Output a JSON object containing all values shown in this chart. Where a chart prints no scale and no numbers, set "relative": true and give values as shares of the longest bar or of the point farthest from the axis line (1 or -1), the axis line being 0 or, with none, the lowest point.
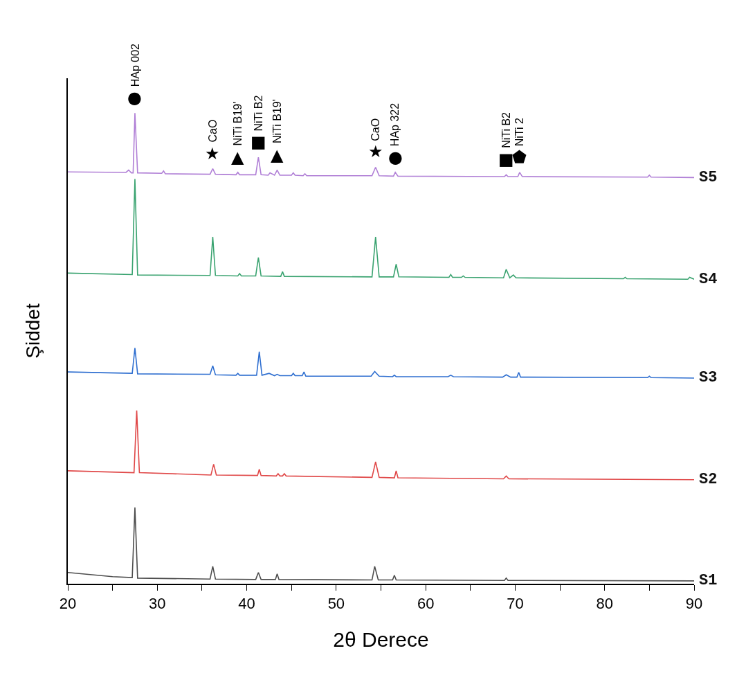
{
  "chart_data": {
    "type": "line",
    "relative": true,
    "xlabel": "2θ Derece",
    "ylabel": "Şiddet",
    "xlim": [
      20,
      90
    ],
    "xticks": [
      20,
      {
        "value": 25,
        "label": null
      },
      30,
      {
        "value": 35,
        "label": null
      },
      40,
      {
        "value": 45,
        "label": null
      },
      50,
      {
        "value": 55,
        "label": null
      },
      60,
      {
        "value": 65,
        "label": null
      },
      70,
      {
        "value": 75,
        "label": null
      },
      80,
      {
        "value": 85,
        "label": null
      },
      90
    ],
    "legend": false,
    "marker": "none",
    "line_style": "solid",
    "series": [
      {
        "name": "S1",
        "color": "#4d4d4d",
        "x": [
          20,
          25.0,
          27.2,
          27.5,
          27.8,
          35.9,
          36.2,
          36.5,
          41.0,
          41.3,
          41.6,
          43.2,
          43.4,
          43.6,
          54.0,
          54.3,
          54.7,
          56.3,
          56.5,
          56.7,
          68.8,
          69.0,
          69.2,
          90
        ],
        "values": [
          0.024,
          0.015,
          0.013,
          0.162,
          0.012,
          0.01,
          0.037,
          0.01,
          0.009,
          0.024,
          0.009,
          0.009,
          0.021,
          0.009,
          0.008,
          0.037,
          0.008,
          0.008,
          0.018,
          0.008,
          0.007,
          0.012,
          0.007,
          0.006
        ]
      },
      {
        "name": "S2",
        "color": "#e04848",
        "x": [
          20,
          27.4,
          27.7,
          28.0,
          36.0,
          36.3,
          36.6,
          41.2,
          41.4,
          41.6,
          43.3,
          43.5,
          43.7,
          44.0,
          44.2,
          44.4,
          54.0,
          54.4,
          54.8,
          56.5,
          56.7,
          56.9,
          68.7,
          69.0,
          69.3,
          90
        ],
        "values": [
          0.24,
          0.236,
          0.368,
          0.236,
          0.231,
          0.254,
          0.231,
          0.23,
          0.243,
          0.23,
          0.229,
          0.234,
          0.229,
          0.229,
          0.234,
          0.229,
          0.226,
          0.259,
          0.226,
          0.225,
          0.24,
          0.225,
          0.223,
          0.229,
          0.223,
          0.221
        ]
      },
      {
        "name": "S3",
        "color": "#2f6fd0",
        "x": [
          20,
          27.2,
          27.5,
          27.8,
          35.9,
          36.2,
          36.5,
          38.8,
          39.0,
          39.2,
          41.1,
          41.4,
          41.7,
          42.5,
          43.1,
          43.4,
          43.7,
          45.0,
          45.2,
          45.4,
          46.2,
          46.4,
          46.6,
          53.9,
          54.3,
          54.8,
          56.3,
          56.5,
          56.7,
          62.5,
          62.8,
          63.1,
          68.6,
          69.0,
          69.5,
          70.2,
          70.4,
          70.6,
          84.8,
          85.0,
          85.2,
          90
        ],
        "values": [
          0.45,
          0.447,
          0.501,
          0.446,
          0.445,
          0.463,
          0.444,
          0.443,
          0.447,
          0.443,
          0.443,
          0.493,
          0.443,
          0.447,
          0.442,
          0.445,
          0.442,
          0.442,
          0.447,
          0.442,
          0.442,
          0.45,
          0.441,
          0.441,
          0.451,
          0.441,
          0.44,
          0.443,
          0.44,
          0.44,
          0.443,
          0.44,
          0.439,
          0.444,
          0.439,
          0.439,
          0.449,
          0.439,
          0.438,
          0.441,
          0.438,
          0.437
        ]
      },
      {
        "name": "S4",
        "color": "#3aa370",
        "x": [
          20,
          27.2,
          27.5,
          27.8,
          35.9,
          36.2,
          36.5,
          39.0,
          39.2,
          39.4,
          41.0,
          41.3,
          41.6,
          43.8,
          44.0,
          44.2,
          54.0,
          54.4,
          54.8,
          56.4,
          56.7,
          57.0,
          62.6,
          62.8,
          63.0,
          64.0,
          64.2,
          64.4,
          68.7,
          69.0,
          69.4,
          69.8,
          70.1,
          82.1,
          82.3,
          82.5,
          89.3,
          89.5,
          90
        ],
        "values": [
          0.66,
          0.657,
          0.86,
          0.656,
          0.655,
          0.737,
          0.655,
          0.654,
          0.659,
          0.654,
          0.654,
          0.693,
          0.654,
          0.653,
          0.663,
          0.653,
          0.652,
          0.737,
          0.652,
          0.652,
          0.679,
          0.652,
          0.651,
          0.657,
          0.651,
          0.651,
          0.654,
          0.651,
          0.65,
          0.668,
          0.65,
          0.656,
          0.65,
          0.648,
          0.651,
          0.648,
          0.647,
          0.651,
          0.647
        ]
      },
      {
        "name": "S5",
        "color": "#b07fd6",
        "x": [
          20,
          26.5,
          26.8,
          27.1,
          27.3,
          27.5,
          27.8,
          30.5,
          30.7,
          30.9,
          35.9,
          36.2,
          36.5,
          38.8,
          39.0,
          39.2,
          41.0,
          41.3,
          41.6,
          42.4,
          42.6,
          43.1,
          43.4,
          43.7,
          45.0,
          45.2,
          45.4,
          46.3,
          46.5,
          46.7,
          54.0,
          54.4,
          54.8,
          56.4,
          56.6,
          56.9,
          68.8,
          69.0,
          69.2,
          70.3,
          70.5,
          70.8,
          84.8,
          85.0,
          85.2,
          90
        ],
        "values": [
          0.875,
          0.874,
          0.879,
          0.873,
          0.873,
          1.0,
          0.873,
          0.872,
          0.877,
          0.871,
          0.87,
          0.882,
          0.87,
          0.869,
          0.874,
          0.869,
          0.869,
          0.906,
          0.869,
          0.868,
          0.873,
          0.868,
          0.879,
          0.868,
          0.868,
          0.873,
          0.868,
          0.867,
          0.871,
          0.867,
          0.867,
          0.885,
          0.867,
          0.866,
          0.874,
          0.866,
          0.865,
          0.869,
          0.865,
          0.865,
          0.874,
          0.865,
          0.864,
          0.868,
          0.864,
          0.863
        ]
      }
    ],
    "annotations": [
      {
        "text": "● HAp 002",
        "x": 27.5,
        "y": 1.0
      },
      {
        "text": "★ CaO",
        "x": 36.2,
        "y": 0.882
      },
      {
        "text": "▲ NiTi B19'",
        "x": 39.0,
        "y": 0.874
      },
      {
        "text": "■ NiTi B2",
        "x": 41.3,
        "y": 0.906
      },
      {
        "text": "▲ NiTi B19'",
        "x": 43.4,
        "y": 0.879
      },
      {
        "text": "★ CaO",
        "x": 54.4,
        "y": 0.885
      },
      {
        "text": "● HAp 322",
        "x": 56.6,
        "y": 0.874
      },
      {
        "text": "■ NiTi B2",
        "x": 69.0,
        "y": 0.869
      },
      {
        "text": "⬟ NiTi 2",
        "x": 70.5,
        "y": 0.874
      }
    ]
  }
}
